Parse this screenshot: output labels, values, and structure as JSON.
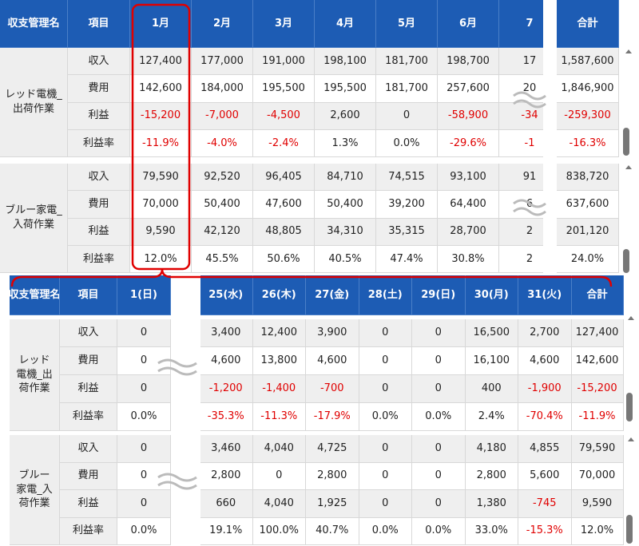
{
  "top_table": {
    "headers": [
      "収支管理名",
      "項目",
      "1月",
      "2月",
      "3月",
      "4月",
      "5月",
      "6月",
      "7",
      "合計"
    ],
    "groups": [
      {
        "name": "レッド電機_出荷作業",
        "rows": [
          {
            "item": "収入",
            "cells": [
              "127,400",
              "177,000",
              "191,000",
              "198,100",
              "181,700",
              "198,700",
              "17",
              "1,587,600"
            ]
          },
          {
            "item": "費用",
            "cells": [
              "142,600",
              "184,000",
              "195,500",
              "195,500",
              "181,700",
              "257,600",
              "20",
              "1,846,900"
            ]
          },
          {
            "item": "利益",
            "cells": [
              "-15,200",
              "-7,000",
              "-4,500",
              "2,600",
              "0",
              "-58,900",
              "-34",
              "-259,300"
            ]
          },
          {
            "item": "利益率",
            "cells": [
              "-11.9%",
              "-4.0%",
              "-2.4%",
              "1.3%",
              "0.0%",
              "-29.6%",
              "-1",
              "-16.3%"
            ]
          }
        ]
      },
      {
        "name": "ブルー家電_入荷作業",
        "rows": [
          {
            "item": "収入",
            "cells": [
              "79,590",
              "92,520",
              "96,405",
              "84,710",
              "74,515",
              "93,100",
              "91",
              "838,720"
            ]
          },
          {
            "item": "費用",
            "cells": [
              "70,000",
              "50,400",
              "47,600",
              "50,400",
              "39,200",
              "64,400",
              "6",
              "637,600"
            ]
          },
          {
            "item": "利益",
            "cells": [
              "9,590",
              "42,120",
              "48,805",
              "34,310",
              "35,315",
              "28,700",
              "2",
              "201,120"
            ]
          },
          {
            "item": "利益率",
            "cells": [
              "12.0%",
              "45.5%",
              "50.6%",
              "40.5%",
              "47.4%",
              "30.8%",
              "2",
              "24.0%"
            ]
          }
        ]
      }
    ]
  },
  "bottom_table": {
    "headers": [
      "収支管理名",
      "項目",
      "1(日)",
      "25(水)",
      "26(木)",
      "27(金)",
      "28(土)",
      "29(日)",
      "30(月)",
      "31(火)",
      "合計"
    ],
    "groups": [
      {
        "name": "レッド電機_出荷作業",
        "rows": [
          {
            "item": "収入",
            "cells": [
              "0",
              "3,400",
              "12,400",
              "3,900",
              "0",
              "0",
              "16,500",
              "2,700",
              "127,400"
            ]
          },
          {
            "item": "費用",
            "cells": [
              "0",
              "4,600",
              "13,800",
              "4,600",
              "0",
              "0",
              "16,100",
              "4,600",
              "142,600"
            ]
          },
          {
            "item": "利益",
            "cells": [
              "0",
              "-1,200",
              "-1,400",
              "-700",
              "0",
              "0",
              "400",
              "-1,900",
              "-15,200"
            ]
          },
          {
            "item": "利益率",
            "cells": [
              "0.0%",
              "-35.3%",
              "-11.3%",
              "-17.9%",
              "0.0%",
              "0.0%",
              "2.4%",
              "-70.4%",
              "-11.9%"
            ]
          }
        ]
      },
      {
        "name": "ブルー家電_入荷作業",
        "rows": [
          {
            "item": "収入",
            "cells": [
              "0",
              "3,460",
              "4,040",
              "4,725",
              "0",
              "0",
              "4,180",
              "4,855",
              "79,590"
            ]
          },
          {
            "item": "費用",
            "cells": [
              "0",
              "2,800",
              "0",
              "2,800",
              "0",
              "0",
              "2,800",
              "5,600",
              "70,000"
            ]
          },
          {
            "item": "利益",
            "cells": [
              "0",
              "660",
              "4,040",
              "1,925",
              "0",
              "0",
              "1,380",
              "-745",
              "9,590"
            ]
          },
          {
            "item": "利益率",
            "cells": [
              "0.0%",
              "19.1%",
              "100.0%",
              "40.7%",
              "0.0%",
              "0.0%",
              "33.0%",
              "-15.3%",
              "12.0%"
            ]
          }
        ]
      }
    ]
  }
}
